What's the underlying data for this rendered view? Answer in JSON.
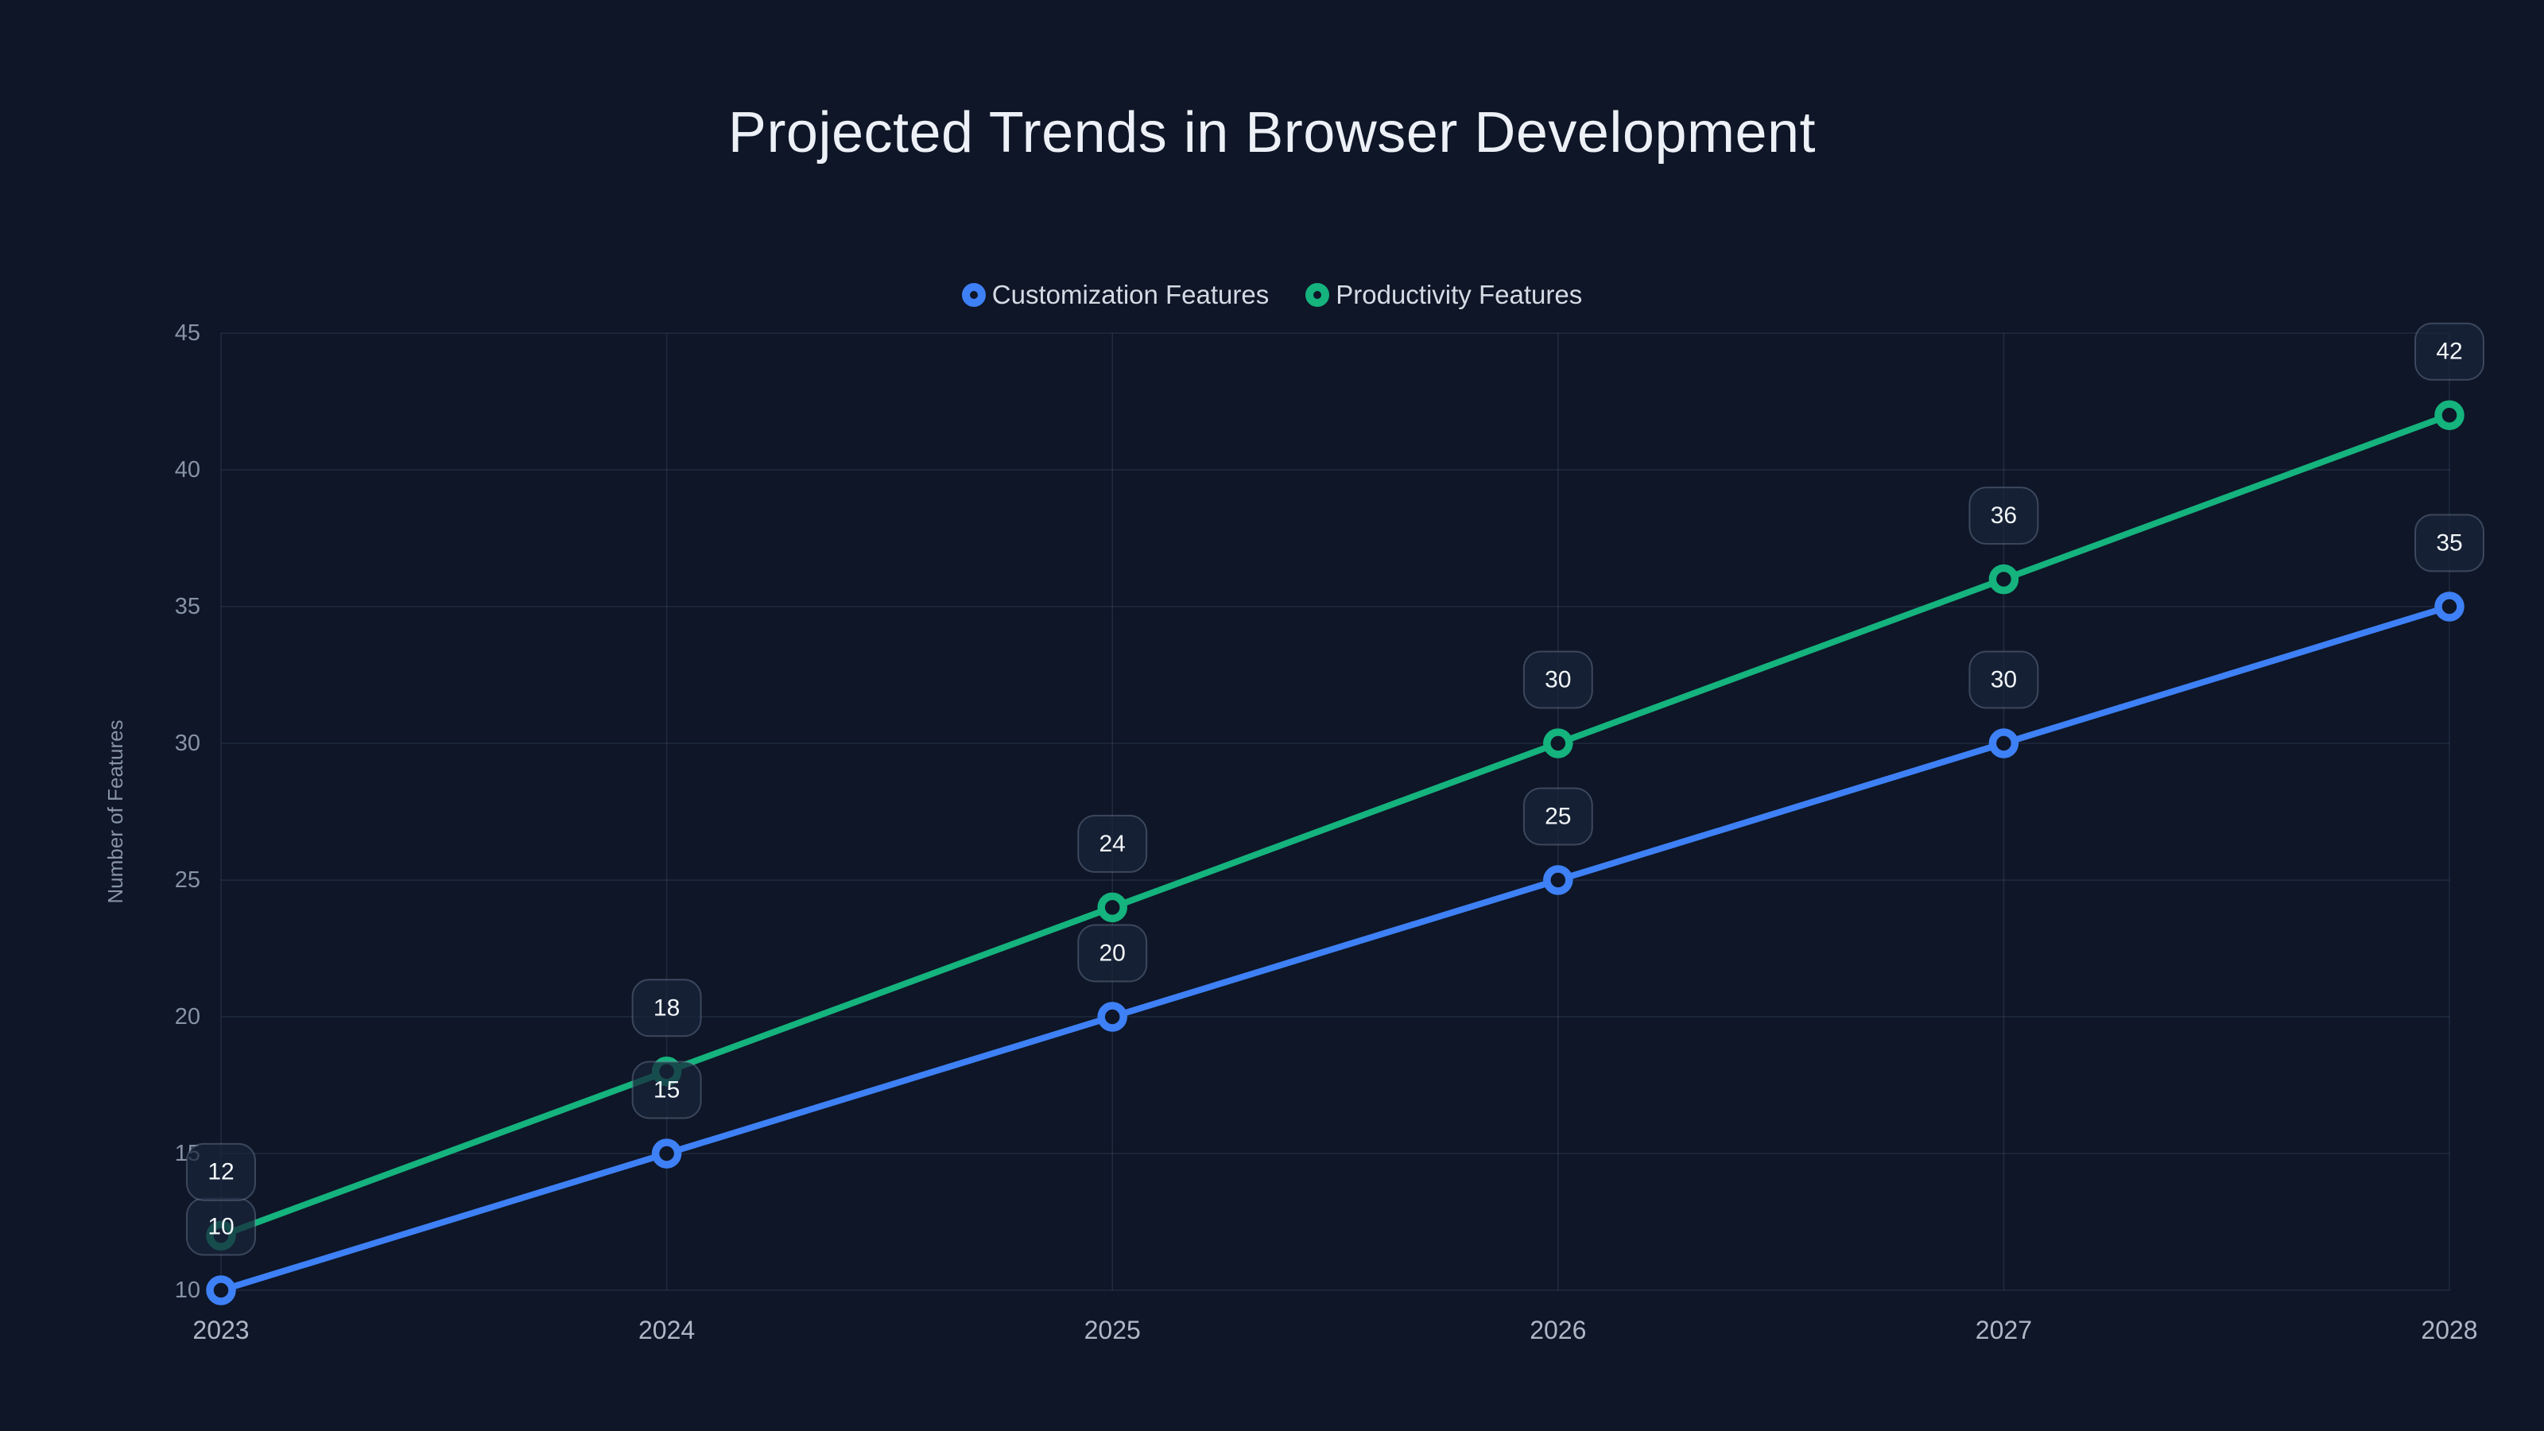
{
  "background_color": "#0e1627",
  "chart_data": {
    "type": "line",
    "title": "Projected Trends in Browser Development",
    "x": [
      "2023",
      "2024",
      "2025",
      "2026",
      "2027",
      "2028"
    ],
    "series": [
      {
        "name": "Customization Features",
        "values": [
          10,
          15,
          20,
          25,
          30,
          35
        ],
        "color": "#3e80f6"
      },
      {
        "name": "Productivity Features",
        "values": [
          12,
          18,
          24,
          30,
          36,
          42
        ],
        "color": "#15b37d"
      }
    ],
    "xlabel": "",
    "ylabel": "Number of Features",
    "ylim": [
      10,
      45
    ],
    "y_ticks": [
      10,
      15,
      20,
      25,
      30,
      35,
      40,
      45
    ],
    "grid": "on",
    "legend_position": "top-center",
    "point_labels": "shown in rounded boxes above each data point",
    "marker_style": "open ring"
  }
}
